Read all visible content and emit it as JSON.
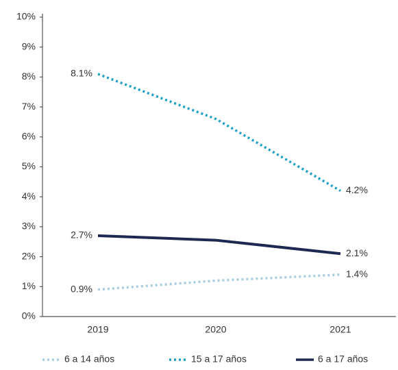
{
  "chart_data": {
    "type": "line",
    "categories": [
      "2019",
      "2020",
      "2021"
    ],
    "ylim": [
      0,
      10
    ],
    "yticks": [
      {
        "value": 0,
        "label": "0%"
      },
      {
        "value": 1,
        "label": "1%"
      },
      {
        "value": 2,
        "label": "2%"
      },
      {
        "value": 3,
        "label": "3%"
      },
      {
        "value": 4,
        "label": "4%"
      },
      {
        "value": 5,
        "label": "5%"
      },
      {
        "value": 6,
        "label": "6%"
      },
      {
        "value": 7,
        "label": "7%"
      },
      {
        "value": 8,
        "label": "8%"
      },
      {
        "value": 9,
        "label": "9%"
      },
      {
        "value": 10,
        "label": "10%"
      }
    ],
    "series": [
      {
        "name": "6 a 14 años",
        "color": "#a8cde0",
        "style": "dotted",
        "values": [
          0.9,
          1.2,
          1.4
        ],
        "value_labels": [
          "0.9%",
          null,
          "1.4%"
        ]
      },
      {
        "name": "15 a 17 años",
        "color": "#1ea0c3",
        "style": "dotted",
        "values": [
          8.1,
          6.6,
          4.2
        ],
        "value_labels": [
          "8.1%",
          null,
          "4.2%"
        ]
      },
      {
        "name": "6 a 17 años",
        "color": "#1d2950",
        "style": "solid",
        "values": [
          2.7,
          2.55,
          2.1
        ],
        "value_labels": [
          "2.7%",
          null,
          "2.1%"
        ]
      }
    ]
  }
}
